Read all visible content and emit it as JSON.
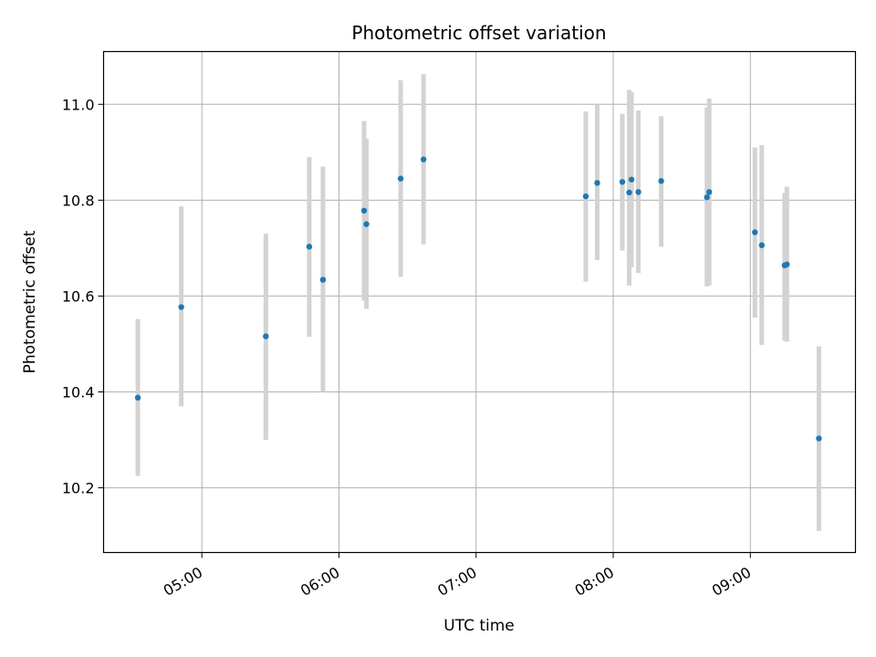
{
  "chart_data": {
    "type": "scatter",
    "title": "Photometric offset variation",
    "xlabel": "UTC time",
    "ylabel": "Photometric offset",
    "x_ticks": [
      "05:00",
      "06:00",
      "07:00",
      "08:00",
      "09:00"
    ],
    "y_ticks": [
      "10.2",
      "10.4",
      "10.6",
      "10.8",
      "11.0"
    ],
    "xlim": [
      "04:17",
      "09:46"
    ],
    "ylim": [
      10.065,
      11.11
    ],
    "grid": true,
    "colors": {
      "points": "#1f77b4",
      "errorbars": "#d3d3d3",
      "grid": "#b0b0b0",
      "axes": "#000000"
    },
    "points": [
      {
        "time": "04:32",
        "y": 10.388,
        "err_low": 10.225,
        "err_high": 10.552
      },
      {
        "time": "04:51",
        "y": 10.577,
        "err_low": 10.37,
        "err_high": 10.787
      },
      {
        "time": "05:28",
        "y": 10.516,
        "err_low": 10.3,
        "err_high": 10.73
      },
      {
        "time": "05:47",
        "y": 10.703,
        "err_low": 10.515,
        "err_high": 10.89
      },
      {
        "time": "05:53",
        "y": 10.634,
        "err_low": 10.4,
        "err_high": 10.87
      },
      {
        "time": "06:11",
        "y": 10.778,
        "err_low": 10.59,
        "err_high": 10.965
      },
      {
        "time": "06:12",
        "y": 10.75,
        "err_low": 10.573,
        "err_high": 10.928
      },
      {
        "time": "06:27",
        "y": 10.845,
        "err_low": 10.64,
        "err_high": 11.05
      },
      {
        "time": "06:37",
        "y": 10.885,
        "err_low": 10.708,
        "err_high": 11.063
      },
      {
        "time": "07:48",
        "y": 10.808,
        "err_low": 10.63,
        "err_high": 10.985
      },
      {
        "time": "07:53",
        "y": 10.836,
        "err_low": 10.675,
        "err_high": 11.0
      },
      {
        "time": "08:04",
        "y": 10.838,
        "err_low": 10.695,
        "err_high": 10.98
      },
      {
        "time": "08:07",
        "y": 10.816,
        "err_low": 10.622,
        "err_high": 11.03
      },
      {
        "time": "08:08",
        "y": 10.843,
        "err_low": 10.66,
        "err_high": 11.025
      },
      {
        "time": "08:11",
        "y": 10.817,
        "err_low": 10.648,
        "err_high": 10.987
      },
      {
        "time": "08:21",
        "y": 10.84,
        "err_low": 10.703,
        "err_high": 10.975
      },
      {
        "time": "08:41",
        "y": 10.806,
        "err_low": 10.62,
        "err_high": 10.993
      },
      {
        "time": "08:42",
        "y": 10.817,
        "err_low": 10.622,
        "err_high": 11.012
      },
      {
        "time": "09:02",
        "y": 10.733,
        "err_low": 10.555,
        "err_high": 10.91
      },
      {
        "time": "09:05",
        "y": 10.706,
        "err_low": 10.498,
        "err_high": 10.915
      },
      {
        "time": "09:15",
        "y": 10.664,
        "err_low": 10.507,
        "err_high": 10.815
      },
      {
        "time": "09:16",
        "y": 10.666,
        "err_low": 10.505,
        "err_high": 10.828
      },
      {
        "time": "09:30",
        "y": 10.303,
        "err_low": 10.11,
        "err_high": 10.495
      }
    ]
  }
}
